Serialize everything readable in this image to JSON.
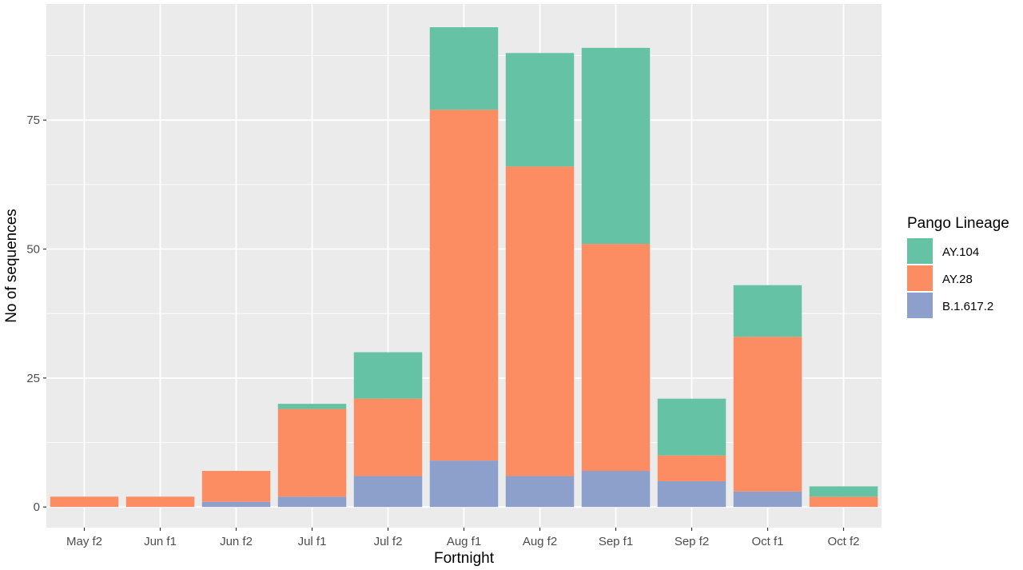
{
  "chart_data": {
    "type": "bar",
    "stacked": true,
    "title": "",
    "xlabel": "Fortnight",
    "ylabel": "No of sequences",
    "categories": [
      "May f2",
      "Jun f1",
      "Jun f2",
      "Jul f1",
      "Jul f2",
      "Aug f1",
      "Aug f2",
      "Sep f1",
      "Sep f2",
      "Oct f1",
      "Oct f2"
    ],
    "series": [
      {
        "name": "B.1.617.2",
        "color": "#8DA0CB",
        "values": [
          0,
          0,
          1,
          2,
          6,
          9,
          6,
          7,
          5,
          3,
          0
        ]
      },
      {
        "name": "AY.28",
        "color": "#FC8D62",
        "values": [
          2,
          2,
          6,
          17,
          15,
          68,
          60,
          44,
          5,
          30,
          2
        ]
      },
      {
        "name": "AY.104",
        "color": "#66C2A5",
        "values": [
          0,
          0,
          0,
          1,
          9,
          16,
          22,
          38,
          11,
          10,
          2
        ]
      }
    ],
    "ylim": [
      -4,
      97.5
    ],
    "yticks": [
      0,
      25,
      50,
      75
    ],
    "grid": true,
    "legend": {
      "title": "Pango Lineage",
      "placement": "right",
      "entries": [
        "AY.104",
        "AY.28",
        "B.1.617.2"
      ]
    },
    "background": "#EBEBEB"
  }
}
